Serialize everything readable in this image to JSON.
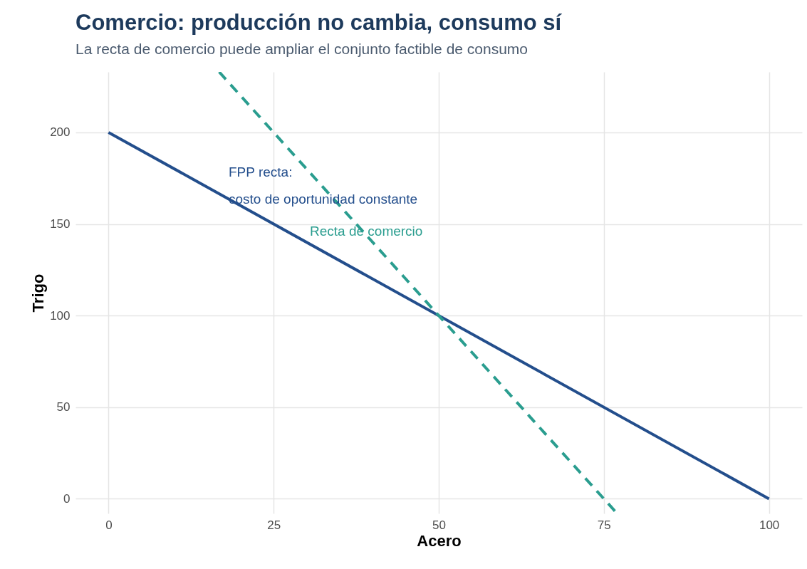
{
  "chart_data": {
    "type": "line",
    "title": "Comercio: producción no cambia, consumo sí",
    "subtitle": "La recta de comercio puede ampliar el conjunto factible de consumo",
    "xlabel": "Acero",
    "ylabel": "Trigo",
    "series": [
      {
        "color": "#234e8c",
        "x": [
          0,
          100
        ],
        "values": [
          200,
          0
        ],
        "line_style": "solid"
      },
      {
        "color": "#2a9d8f",
        "x": [
          16.75,
          77
        ],
        "values": [
          233,
          -8
        ],
        "line_style": "dashed"
      }
    ],
    "annotations": [
      "FPP recta:",
      "costo de oportunidad constante",
      "Recta de comercio"
    ],
    "xlim": [
      -5,
      105
    ],
    "ylim": [
      -8,
      233
    ],
    "xticks": [
      0,
      25,
      50,
      75,
      100
    ],
    "yticks": [
      0,
      50,
      100,
      150,
      200
    ],
    "grid": true,
    "legend": false,
    "marker": "none"
  }
}
